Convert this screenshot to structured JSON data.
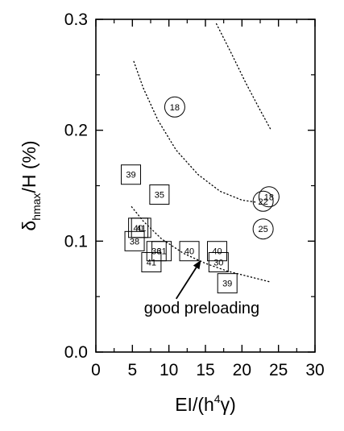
{
  "chart_data": {
    "type": "scatter",
    "title": "",
    "xlabel": {
      "base": "EI/(h",
      "sup": "4",
      "greek": "γ",
      "tail": ")"
    },
    "ylabel": {
      "greek": "δ",
      "sub": "hmax",
      "tail": "/H (%)"
    },
    "xlim": [
      0,
      30
    ],
    "ylim": [
      0,
      0.3
    ],
    "x_ticks": [
      {
        "value": 0,
        "label": "0"
      },
      {
        "value": 5,
        "label": "5"
      },
      {
        "value": 10,
        "label": "10"
      },
      {
        "value": 15,
        "label": "15"
      },
      {
        "value": 20,
        "label": "20"
      },
      {
        "value": 25,
        "label": "25"
      },
      {
        "value": 30,
        "label": "30"
      }
    ],
    "y_ticks": [
      {
        "value": 0.0,
        "label": "0.0"
      },
      {
        "value": 0.1,
        "label": "0.1"
      },
      {
        "value": 0.2,
        "label": "0.2"
      },
      {
        "value": 0.3,
        "label": "0.3"
      }
    ],
    "grid": false,
    "series": [
      {
        "marker": "square",
        "points": [
          {
            "x": 4.8,
            "y": 0.16,
            "label": "39"
          },
          {
            "x": 8.7,
            "y": 0.142,
            "label": "35"
          },
          {
            "x": 5.8,
            "y": 0.112,
            "label": "40"
          },
          {
            "x": 6.2,
            "y": 0.112,
            "label": "41"
          },
          {
            "x": 5.3,
            "y": 0.1,
            "label": "38"
          },
          {
            "x": 8.3,
            "y": 0.091,
            "label": "36"
          },
          {
            "x": 9.0,
            "y": 0.091,
            "label": "31"
          },
          {
            "x": 7.6,
            "y": 0.081,
            "label": "41"
          },
          {
            "x": 12.8,
            "y": 0.091,
            "label": "40"
          },
          {
            "x": 16.6,
            "y": 0.091,
            "label": "40"
          },
          {
            "x": 16.8,
            "y": 0.081,
            "label": "30"
          },
          {
            "x": 18.0,
            "y": 0.062,
            "label": "39"
          }
        ]
      },
      {
        "marker": "circle",
        "points": [
          {
            "x": 10.8,
            "y": 0.221,
            "label": "18"
          },
          {
            "x": 23.7,
            "y": 0.14,
            "label": "18"
          },
          {
            "x": 22.9,
            "y": 0.136,
            "label": "22"
          },
          {
            "x": 22.9,
            "y": 0.111,
            "label": "25"
          }
        ]
      }
    ],
    "curves": [
      {
        "style": "dotted",
        "points": [
          [
            16.5,
            0.296
          ],
          [
            18.5,
            0.27
          ],
          [
            20.5,
            0.243
          ],
          [
            22.5,
            0.218
          ],
          [
            24.0,
            0.2
          ]
        ]
      },
      {
        "style": "dotted",
        "points": [
          [
            5.2,
            0.262
          ],
          [
            6.5,
            0.238
          ],
          [
            8.5,
            0.209
          ],
          [
            11.0,
            0.182
          ],
          [
            14.0,
            0.16
          ],
          [
            17.0,
            0.145
          ],
          [
            20.0,
            0.137
          ],
          [
            22.0,
            0.135
          ]
        ]
      },
      {
        "style": "dotted",
        "points": [
          [
            4.9,
            0.131
          ],
          [
            6.5,
            0.118
          ],
          [
            9.0,
            0.102
          ],
          [
            12.0,
            0.089
          ],
          [
            15.0,
            0.08
          ],
          [
            18.0,
            0.073
          ],
          [
            21.0,
            0.068
          ],
          [
            24.0,
            0.063
          ]
        ]
      }
    ],
    "annotation": {
      "text": "good preloading",
      "x": 14.5,
      "y": 0.04,
      "arrow_from": [
        11.0,
        0.048
      ],
      "arrow_to": [
        14.4,
        0.083
      ]
    }
  }
}
